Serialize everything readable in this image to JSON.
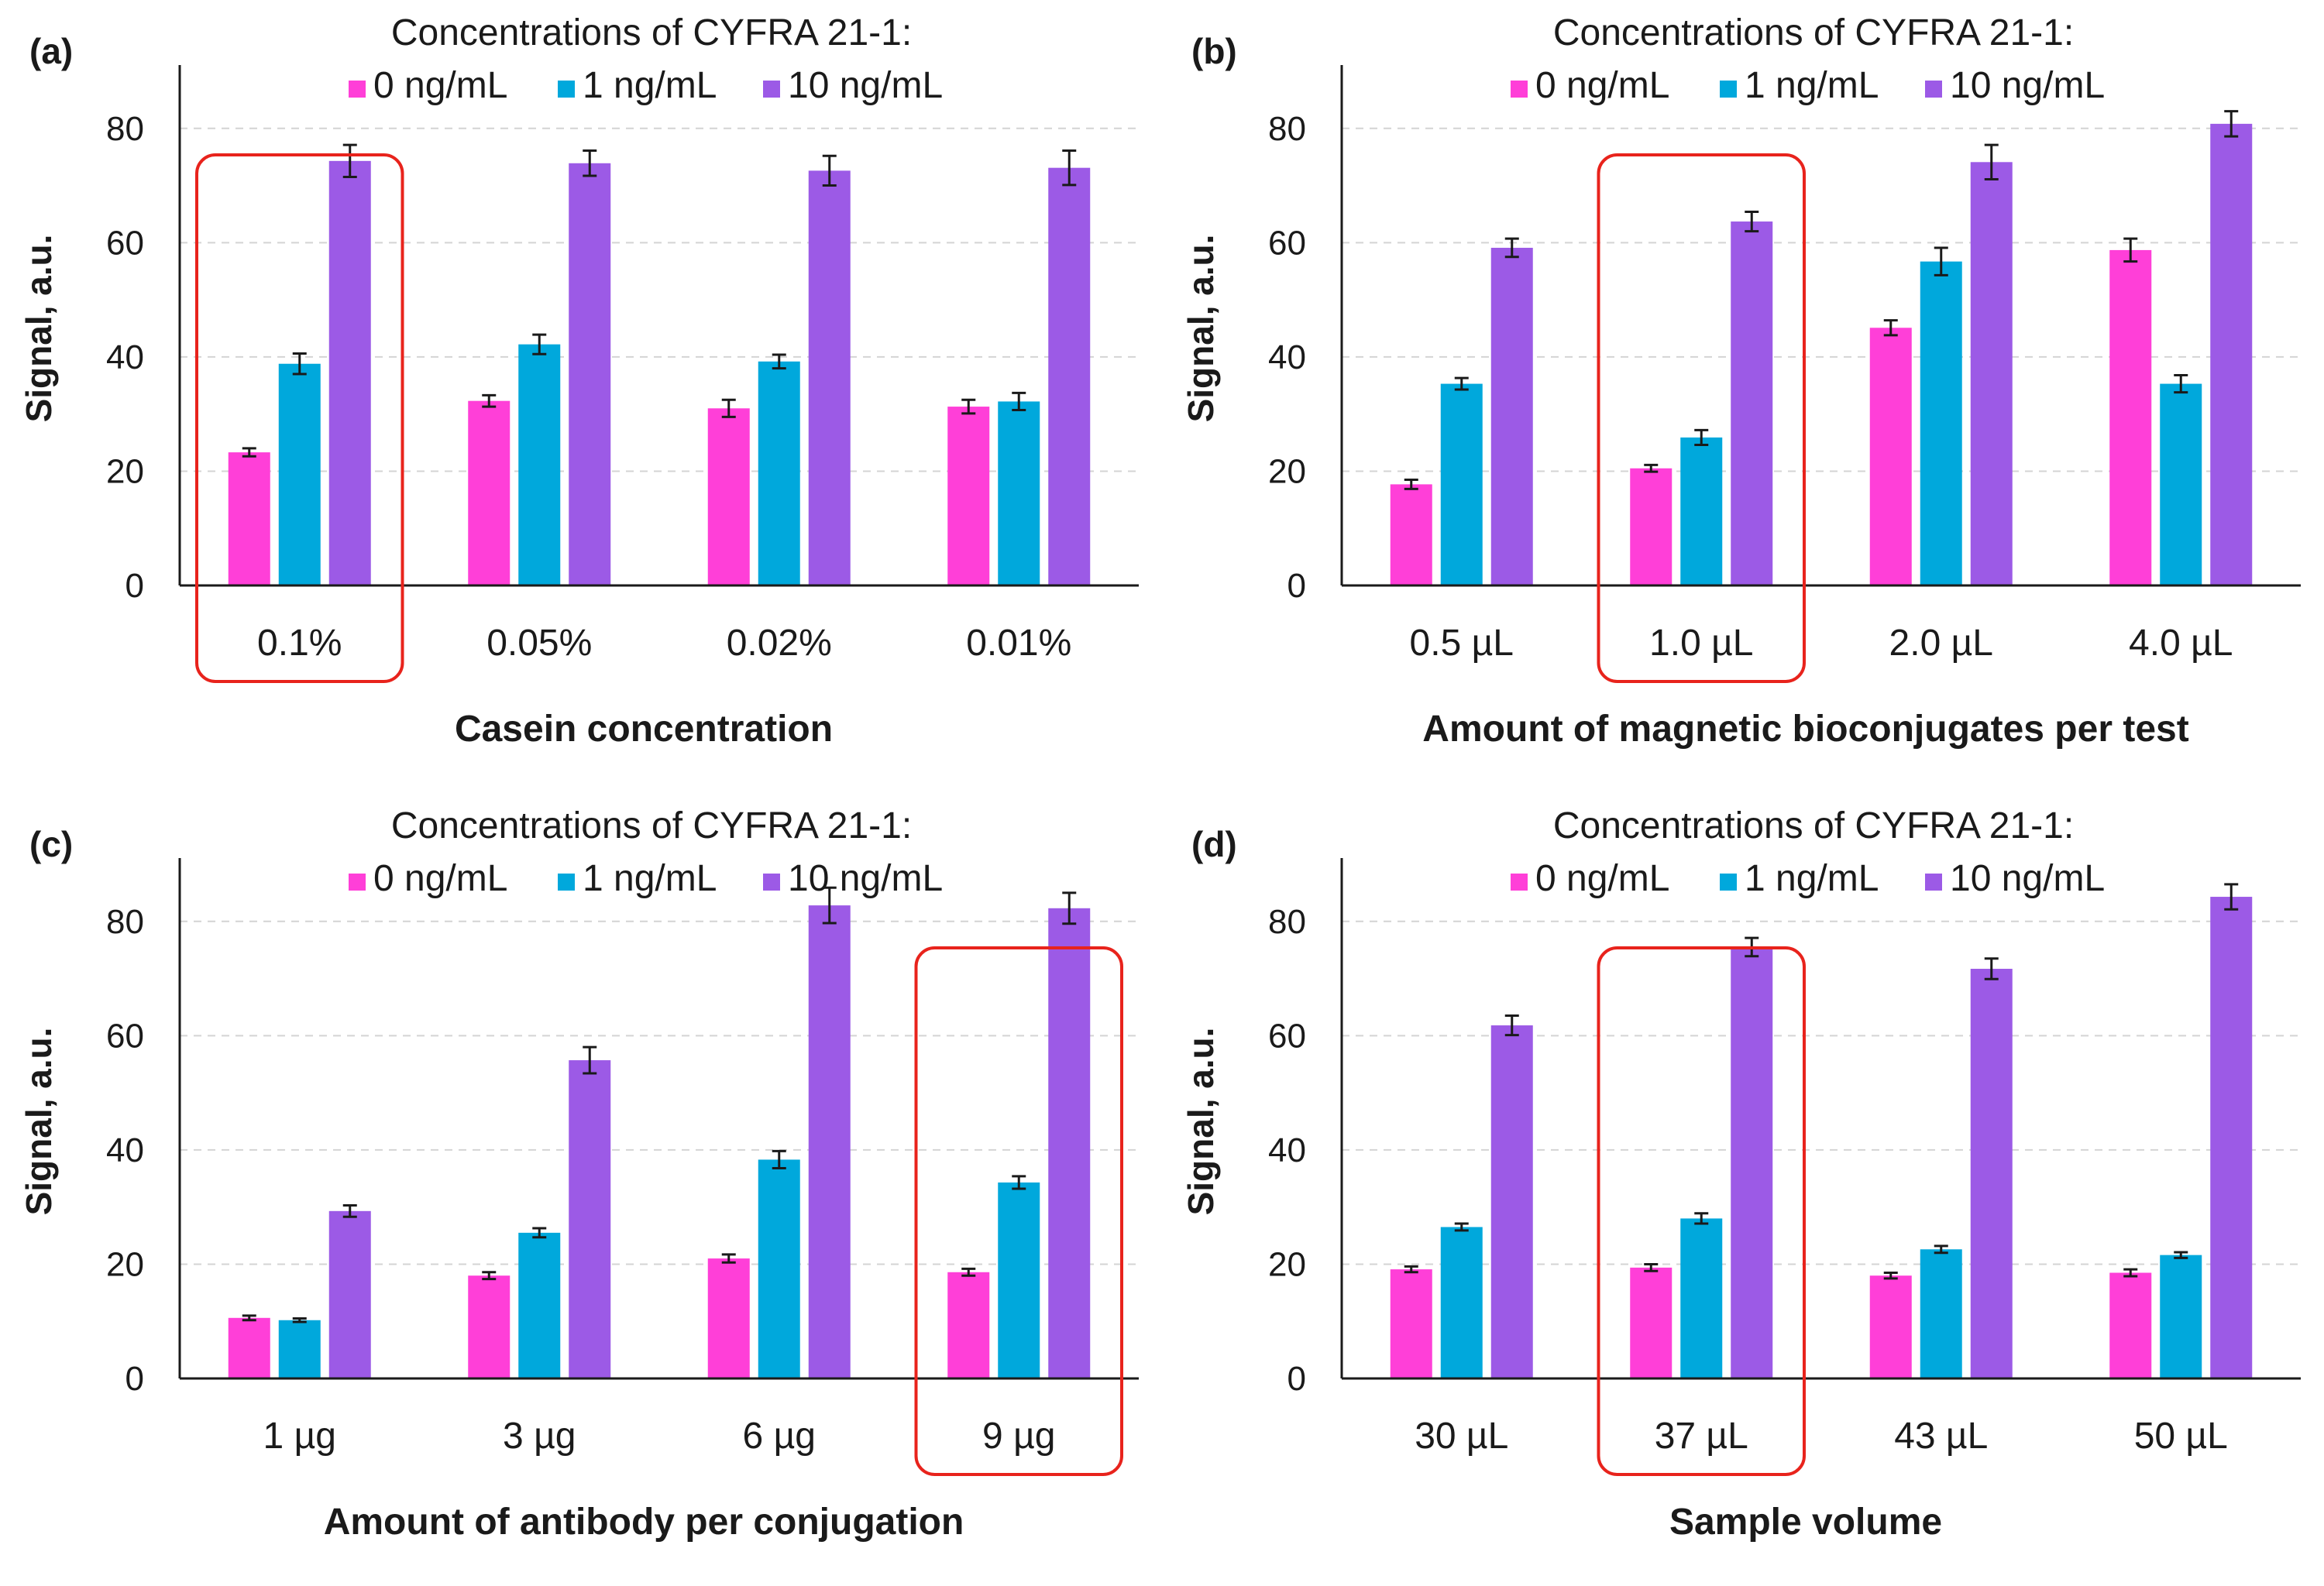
{
  "legend_title": "Concentrations of CYFRA 21-1:",
  "ylabel": "Signal, a.u.",
  "series_names": [
    "0 ng/mL",
    "1 ng/mL",
    "10 ng/mL"
  ],
  "colors": {
    "series": [
      "#ff3fd8",
      "#00a8dc",
      "#9c5ae6"
    ],
    "highlight": "#e8231c",
    "axis": "#1a1a1a",
    "grid": "#d4d4d4"
  },
  "chart_data": [
    {
      "panel": "(a)",
      "type": "bar",
      "title": "Concentrations of CYFRA 21-1:",
      "xlabel": "Casein concentration",
      "ylabel": "Signal, a.u.",
      "categories": [
        "0.1%",
        "0.05%",
        "0.02%",
        "0.01%"
      ],
      "series": [
        {
          "name": "0 ng/mL",
          "values": [
            23.3,
            32.3,
            31.0,
            31.3
          ],
          "errors": [
            0.7,
            1.0,
            1.5,
            1.2
          ]
        },
        {
          "name": "1 ng/mL",
          "values": [
            38.8,
            42.2,
            39.2,
            32.2
          ],
          "errors": [
            1.8,
            1.7,
            1.2,
            1.5
          ]
        },
        {
          "name": "10 ng/mL",
          "values": [
            74.3,
            73.9,
            72.6,
            73.1
          ],
          "errors": [
            2.8,
            2.2,
            2.6,
            3.0
          ]
        }
      ],
      "ylim": [
        0,
        90
      ],
      "yticks": [
        0,
        20,
        40,
        60,
        80
      ],
      "highlight_index": 0
    },
    {
      "panel": "(b)",
      "type": "bar",
      "title": "Concentrations of CYFRA 21-1:",
      "xlabel": "Amount of magnetic bioconjugates per test",
      "ylabel": "Signal, a.u.",
      "categories": [
        "0.5 µL",
        "1.0 µL",
        "2.0 µL",
        "4.0 µL"
      ],
      "series": [
        {
          "name": "0 ng/mL",
          "values": [
            17.7,
            20.5,
            45.1,
            58.7
          ],
          "errors": [
            0.8,
            0.6,
            1.3,
            2.0
          ]
        },
        {
          "name": "1 ng/mL",
          "values": [
            35.3,
            25.9,
            56.7,
            35.3
          ],
          "errors": [
            1.0,
            1.3,
            2.4,
            1.5
          ]
        },
        {
          "name": "10 ng/mL",
          "values": [
            59.1,
            63.7,
            74.1,
            80.8
          ],
          "errors": [
            1.6,
            1.7,
            3.0,
            2.2
          ]
        }
      ],
      "ylim": [
        0,
        90
      ],
      "yticks": [
        0,
        20,
        40,
        60,
        80
      ],
      "highlight_index": 1
    },
    {
      "panel": "(c)",
      "type": "bar",
      "title": "Concentrations of CYFRA 21-1:",
      "xlabel": "Amount of antibody per conjugation",
      "ylabel": "Signal, a.u.",
      "categories": [
        "1 µg",
        "3 µg",
        "6 µg",
        "9 µg"
      ],
      "series": [
        {
          "name": "0 ng/mL",
          "values": [
            10.6,
            18.0,
            21.0,
            18.6
          ],
          "errors": [
            0.4,
            0.6,
            0.7,
            0.6
          ]
        },
        {
          "name": "1 ng/mL",
          "values": [
            10.2,
            25.5,
            38.3,
            34.3
          ],
          "errors": [
            0.3,
            0.8,
            1.5,
            1.1
          ]
        },
        {
          "name": "10 ng/mL",
          "values": [
            29.3,
            55.7,
            82.8,
            82.3
          ],
          "errors": [
            1.0,
            2.3,
            3.1,
            2.7
          ]
        }
      ],
      "ylim": [
        0,
        90
      ],
      "yticks": [
        0,
        20,
        40,
        60,
        80
      ],
      "highlight_index": 3
    },
    {
      "panel": "(d)",
      "type": "bar",
      "title": "Concentrations of CYFRA 21-1:",
      "xlabel": "Sample volume",
      "ylabel": "Signal, a.u.",
      "categories": [
        "30 µL",
        "37  µL",
        "43 µL",
        "50 µL"
      ],
      "series": [
        {
          "name": "0 ng/mL",
          "values": [
            19.1,
            19.4,
            18.0,
            18.5
          ],
          "errors": [
            0.5,
            0.6,
            0.5,
            0.6
          ]
        },
        {
          "name": "1 ng/mL",
          "values": [
            26.5,
            28.0,
            22.6,
            21.6
          ],
          "errors": [
            0.6,
            0.9,
            0.6,
            0.5
          ]
        },
        {
          "name": "10 ng/mL",
          "values": [
            61.8,
            75.5,
            71.7,
            84.3
          ],
          "errors": [
            1.7,
            1.6,
            1.8,
            2.2
          ]
        }
      ],
      "ylim": [
        0,
        90
      ],
      "yticks": [
        0,
        20,
        40,
        60,
        80
      ],
      "highlight_index": 1
    }
  ]
}
